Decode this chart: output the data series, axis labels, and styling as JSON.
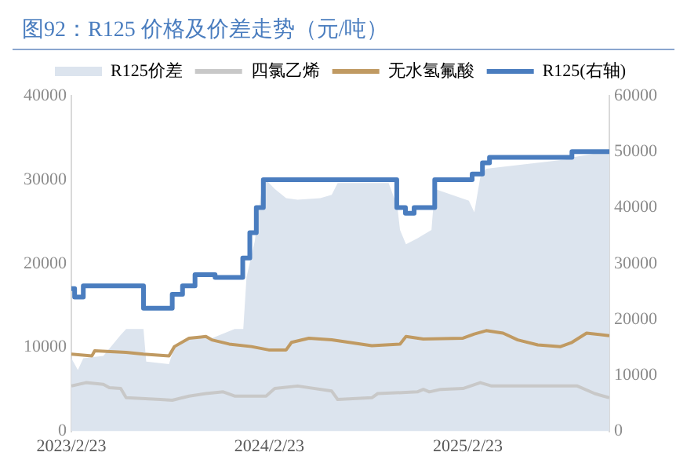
{
  "chart_data": {
    "type": "line",
    "title": "图92：R125 价格及价差走势（元/吨）",
    "xlim": [
      "2023-02-23",
      "2025-11-11"
    ],
    "xticks": [
      {
        "value": "2023-02-23",
        "label": "2023/2/23"
      },
      {
        "value": "2024-02-23",
        "label": "2024/2/23"
      },
      {
        "value": "2025-02-23",
        "label": "2025/2/23"
      }
    ],
    "ylim": [
      0,
      40000
    ],
    "yticks": [
      0,
      10000,
      20000,
      30000,
      40000
    ],
    "y2lim": [
      0,
      60000
    ],
    "y2ticks": [
      0,
      10000,
      20000,
      30000,
      40000,
      50000,
      60000
    ],
    "grid": false,
    "legend": "top",
    "marker": "none",
    "series": [
      {
        "name": "R125价差",
        "type": "area",
        "color": "#dce4ee",
        "x": [
          "2023-02-23",
          "2023-03-07",
          "2023-03-17",
          "2023-04-23",
          "2023-05-25",
          "2023-06-04",
          "2023-07-06",
          "2023-07-11",
          "2023-08-22",
          "2023-09-01",
          "2023-09-28",
          "2023-11-09",
          "2023-12-21",
          "2024-01-06",
          "2024-01-12",
          "2024-01-27",
          "2024-02-12",
          "2024-03-04",
          "2024-03-25",
          "2024-04-15",
          "2024-05-27",
          "2024-06-17",
          "2024-06-28",
          "2024-09-30",
          "2024-10-16",
          "2024-10-21",
          "2024-11-01",
          "2024-11-22",
          "2024-12-18",
          "2024-12-24",
          "2025-02-25",
          "2025-03-07",
          "2025-03-18",
          "2025-03-29",
          "2025-05-21",
          "2025-08-23",
          "2025-09-08",
          "2025-10-15",
          "2025-11-11"
        ],
        "values": [
          8700,
          7300,
          8700,
          9000,
          11500,
          12200,
          12200,
          8300,
          8000,
          10100,
          11100,
          11100,
          12200,
          12200,
          18400,
          22600,
          30300,
          28900,
          27800,
          27600,
          27800,
          28200,
          29600,
          29600,
          26800,
          24000,
          22300,
          23000,
          24000,
          28900,
          27500,
          26100,
          30300,
          31300,
          31700,
          32400,
          32700,
          33100,
          33400
        ]
      },
      {
        "name": "四氯乙烯",
        "type": "line",
        "color": "#c8c8c8",
        "x": [
          "2023-02-23",
          "2023-03-22",
          "2023-04-23",
          "2023-05-04",
          "2023-05-25",
          "2023-06-04",
          "2023-08-06",
          "2023-08-28",
          "2023-09-28",
          "2023-10-29",
          "2023-11-30",
          "2023-12-21",
          "2024-02-17",
          "2024-03-04",
          "2024-04-15",
          "2024-06-17",
          "2024-06-28",
          "2024-08-30",
          "2024-09-10",
          "2024-11-22",
          "2024-12-03",
          "2024-12-14",
          "2025-01-04",
          "2025-02-14",
          "2025-03-18",
          "2025-04-08",
          "2025-09-13",
          "2025-10-15",
          "2025-11-11"
        ],
        "values": [
          5400,
          5800,
          5600,
          5200,
          5100,
          4000,
          3800,
          3700,
          4200,
          4500,
          4700,
          4200,
          4200,
          5100,
          5400,
          4800,
          3800,
          4000,
          4500,
          4700,
          5000,
          4700,
          5000,
          5100,
          5800,
          5400,
          5400,
          4500,
          4000
        ]
      },
      {
        "name": "无水氢氟酸",
        "type": "line",
        "color": "#c09a62",
        "x": [
          "2023-02-23",
          "2023-04-02",
          "2023-04-07",
          "2023-06-04",
          "2023-07-06",
          "2023-08-22",
          "2023-09-01",
          "2023-09-28",
          "2023-10-29",
          "2023-11-09",
          "2023-12-11",
          "2024-01-21",
          "2024-02-22",
          "2024-03-25",
          "2024-04-04",
          "2024-05-06",
          "2024-06-17",
          "2024-08-30",
          "2024-10-21",
          "2024-11-01",
          "2024-12-03",
          "2025-02-14",
          "2025-03-07",
          "2025-03-29",
          "2025-04-29",
          "2025-05-26",
          "2025-07-02",
          "2025-08-13",
          "2025-09-03",
          "2025-09-30",
          "2025-11-11"
        ],
        "values": [
          9200,
          9000,
          9600,
          9400,
          9200,
          9000,
          10100,
          11100,
          11300,
          10900,
          10400,
          10100,
          9700,
          9700,
          10600,
          11100,
          10900,
          10200,
          10400,
          11300,
          11000,
          11100,
          11600,
          12000,
          11700,
          10900,
          10300,
          10100,
          10600,
          11700,
          11400
        ]
      },
      {
        "name": "R125(右轴)",
        "type": "step",
        "axis": "y2",
        "color": "#4a7dbf",
        "x": [
          "2023-02-23",
          "2023-03-01",
          "2023-03-17",
          "2023-07-06",
          "2023-08-28",
          "2023-09-16",
          "2023-10-09",
          "2023-11-15",
          "2024-01-05",
          "2024-01-18",
          "2024-01-30",
          "2024-02-12",
          "2024-10-15",
          "2024-10-31",
          "2024-11-16",
          "2024-12-24",
          "2025-03-03",
          "2025-03-22",
          "2025-04-04",
          "2025-09-03",
          "2025-11-11"
        ],
        "values": [
          25500,
          24000,
          26000,
          22000,
          24500,
          26000,
          28000,
          27500,
          31000,
          35500,
          40000,
          45000,
          40000,
          39000,
          40000,
          45000,
          46000,
          48000,
          49000,
          50000,
          50000
        ]
      }
    ]
  }
}
